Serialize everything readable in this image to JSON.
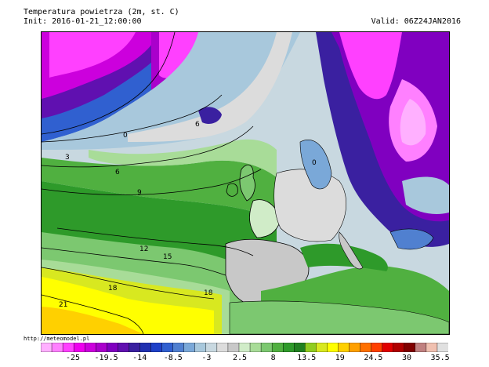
{
  "header": {
    "title": "Temperatura powietrza (2m, st. C)",
    "init": "Init: 2016-01-21_12:00:00",
    "valid": "Valid: 06Z24JAN2016"
  },
  "footer": {
    "url": "http://meteomodel.pl"
  },
  "map": {
    "contour_labels": [
      {
        "id": "c0a",
        "text": "0"
      },
      {
        "id": "c0b",
        "text": "0"
      },
      {
        "id": "c3",
        "text": "3"
      },
      {
        "id": "c6a",
        "text": "6"
      },
      {
        "id": "c6b",
        "text": "6"
      },
      {
        "id": "c9",
        "text": "9"
      },
      {
        "id": "c12",
        "text": "12"
      },
      {
        "id": "c15",
        "text": "15"
      },
      {
        "id": "c18a",
        "text": "18"
      },
      {
        "id": "c18b",
        "text": "18"
      },
      {
        "id": "c21",
        "text": "21"
      }
    ]
  },
  "colorbar": {
    "colors": [
      "#ffb0ff",
      "#ff80ff",
      "#ff40ff",
      "#ee00ee",
      "#cc00dd",
      "#aa00cc",
      "#8000c0",
      "#6010b0",
      "#3a20a0",
      "#2030b0",
      "#1e40c8",
      "#3060d0",
      "#5080d0",
      "#7aa8d8",
      "#a8c8dc",
      "#c8d8e0",
      "#dcdcdc",
      "#c8c8c8",
      "#d0ecc8",
      "#a8dc98",
      "#7cc870",
      "#50b040",
      "#2e9a2a",
      "#208020",
      "#90cc20",
      "#d8e820",
      "#ffff00",
      "#ffd000",
      "#ffa000",
      "#ff7000",
      "#ff4000",
      "#e00000",
      "#b00000",
      "#800000",
      "#c08080",
      "#f0c0b0",
      "#e0e0e0"
    ],
    "labels": [
      "-25",
      "-19.5",
      "-14",
      "-8.5",
      "-3",
      "2.5",
      "8",
      "13.5",
      "19",
      "24.5",
      "30",
      "35.5"
    ]
  }
}
